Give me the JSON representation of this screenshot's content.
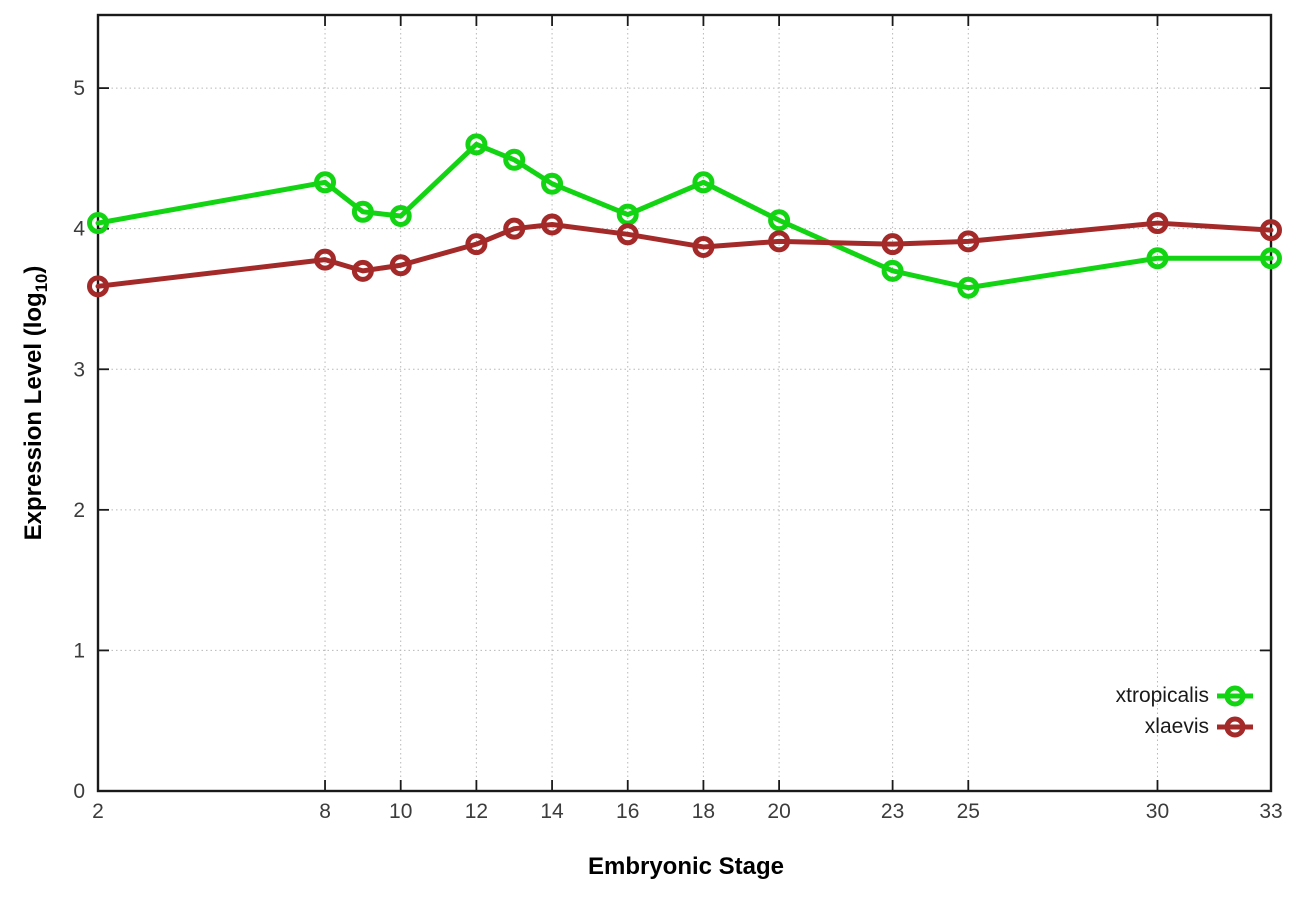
{
  "chart_data": {
    "type": "line",
    "title": "",
    "xlabel": "Embryonic Stage",
    "ylabel_main": "Expression Level (log",
    "ylabel_sub": "10",
    "ylabel_close": ")",
    "x": [
      2,
      8,
      9,
      10,
      12,
      13,
      14,
      16,
      18,
      20,
      23,
      25,
      30,
      33
    ],
    "xticks": [
      "2",
      "8",
      "10",
      "12",
      "14",
      "16",
      "18",
      "20",
      "23",
      "25",
      "30",
      "33"
    ],
    "xtick_values": [
      2,
      8,
      10,
      12,
      14,
      16,
      18,
      20,
      23,
      25,
      30,
      33
    ],
    "yticks": [
      "0",
      "1",
      "2",
      "3",
      "4",
      "5"
    ],
    "ytick_values": [
      0,
      1,
      2,
      3,
      4,
      5
    ],
    "xlim": [
      2,
      33
    ],
    "ylim": [
      0,
      5.52
    ],
    "grid": true,
    "grid_style": "dotted",
    "legend_position": "inside-bottom-right",
    "series": [
      {
        "name": "xtropicalis",
        "color": "#12d412",
        "marker": "open-circle",
        "values": [
          4.04,
          4.33,
          4.12,
          4.09,
          4.6,
          4.49,
          4.32,
          4.1,
          4.33,
          4.06,
          3.7,
          3.58,
          3.79,
          3.79
        ]
      },
      {
        "name": "xlaevis",
        "color": "#a42a2a",
        "marker": "open-circle",
        "values": [
          3.59,
          3.78,
          3.7,
          3.74,
          3.89,
          4.0,
          4.03,
          3.96,
          3.87,
          3.91,
          3.89,
          3.91,
          4.04,
          3.99
        ]
      }
    ],
    "colors": {
      "background": "#ffffff",
      "border": "#1a1a1a",
      "grid": "#b8b8b8",
      "tick_label": "#3c3c3c"
    }
  }
}
